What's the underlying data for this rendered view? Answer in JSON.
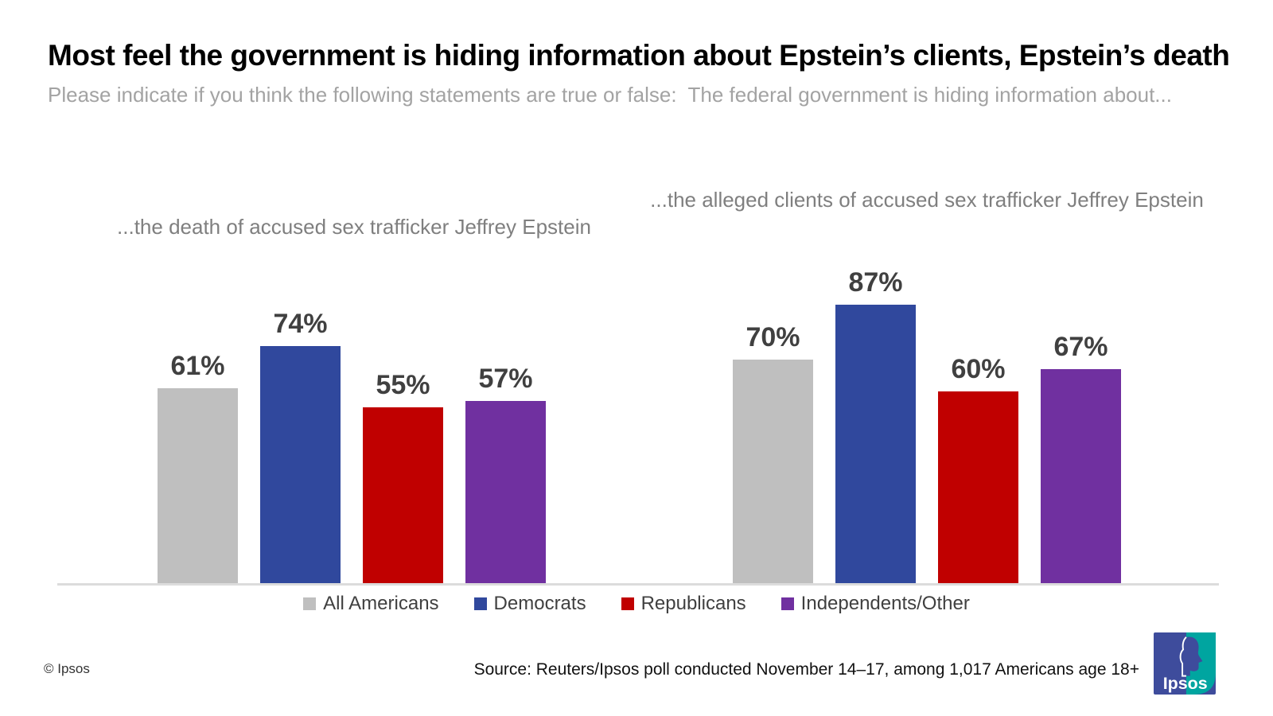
{
  "header": {
    "title": "Most feel the government is hiding information about Epstein’s clients, Epstein’s death",
    "subtitle": "Please indicate if you think the following statements are true or false:  The federal government is hiding information about..."
  },
  "legend": {
    "items": [
      {
        "label": "All Americans",
        "color": "#BFBFBF"
      },
      {
        "label": "Democrats",
        "color": "#30489D"
      },
      {
        "label": "Republicans",
        "color": "#C00000"
      },
      {
        "label": "Independents/Other",
        "color": "#7030A0"
      }
    ]
  },
  "footer": {
    "copyright": "© Ipsos",
    "source": "Source: Reuters/Ipsos poll conducted November 14–17, among 1,017 Americans age 18+",
    "logo_text": "Ipsos"
  },
  "colors": {
    "title": "#000000",
    "subtitle": "#A3A3A3",
    "chart_title": "#7F7F7F",
    "value_label": "#404040",
    "axis_line": "#DCDCDC",
    "logo_blue": "#3E4C9C",
    "logo_teal": "#00A5A0"
  },
  "chart_data": [
    {
      "type": "bar",
      "title": "...the death of accused sex trafficker Jeffrey Epstein",
      "categories": [
        "All Americans",
        "Democrats",
        "Republicans",
        "Independents/Other"
      ],
      "values": [
        61,
        74,
        55,
        57
      ],
      "unit": "%",
      "ylim": [
        0,
        100
      ],
      "grid": false,
      "legend_position": "bottom"
    },
    {
      "type": "bar",
      "title": "...the alleged clients of accused sex trafficker Jeffrey Epstein",
      "categories": [
        "All Americans",
        "Democrats",
        "Republicans",
        "Independents/Other"
      ],
      "values": [
        70,
        87,
        60,
        67
      ],
      "unit": "%",
      "ylim": [
        0,
        100
      ],
      "grid": false,
      "legend_position": "bottom"
    }
  ]
}
